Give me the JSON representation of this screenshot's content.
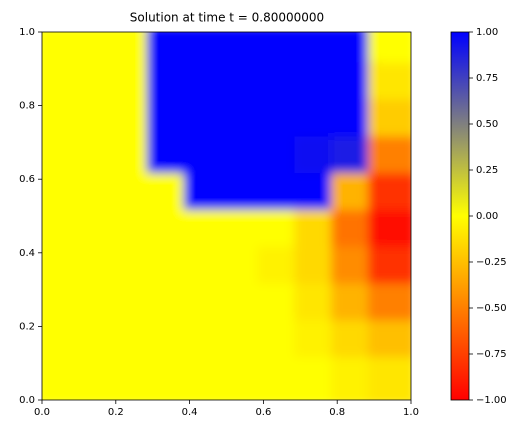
{
  "chart_data": {
    "type": "heatmap",
    "title": "Solution at time t =     0.80000000",
    "x": [
      0.05,
      0.15,
      0.25,
      0.35,
      0.45,
      0.55,
      0.65,
      0.75,
      0.85,
      0.95
    ],
    "y": [
      0.95,
      0.85,
      0.75,
      0.65,
      0.55,
      0.45,
      0.35,
      0.25,
      0.15,
      0.05
    ],
    "z": [
      [
        0,
        0,
        0,
        1,
        1,
        1,
        1,
        1,
        1,
        0
      ],
      [
        0,
        0,
        0,
        1,
        1,
        1,
        1,
        1,
        1,
        -0.1
      ],
      [
        0,
        0,
        0,
        1,
        1,
        1,
        1,
        1,
        1,
        -0.2
      ],
      [
        0,
        0,
        0,
        1,
        1,
        1,
        1,
        0.95,
        0.9,
        -0.5
      ],
      [
        0,
        0,
        0,
        0,
        1,
        1,
        1,
        1,
        -0.3,
        -0.8
      ],
      [
        0,
        0,
        0,
        0,
        0,
        0,
        0,
        -0.15,
        -0.55,
        -0.95
      ],
      [
        0,
        0,
        0,
        0,
        0,
        0,
        -0.05,
        -0.15,
        -0.45,
        -0.8
      ],
      [
        0,
        0,
        0,
        0,
        0,
        0,
        0,
        -0.1,
        -0.3,
        -0.5
      ],
      [
        0,
        0,
        0,
        0,
        0,
        0,
        0,
        -0.05,
        -0.15,
        -0.25
      ],
      [
        0,
        0,
        0,
        0,
        0,
        0,
        0,
        0,
        -0.05,
        -0.1
      ]
    ],
    "xlim": [
      0,
      1
    ],
    "ylim": [
      0,
      1
    ],
    "xticks": [
      {
        "value": 0,
        "label": "0.0"
      },
      0.2,
      0.4,
      0.6,
      0.8,
      {
        "value": 1,
        "label": "1.0"
      }
    ],
    "yticks": [
      {
        "value": 0,
        "label": "0.0"
      },
      0.2,
      0.4,
      0.6,
      0.8,
      {
        "value": 1,
        "label": "1.0"
      }
    ],
    "clim": [
      -1,
      1
    ],
    "colors": [
      "#ff0000",
      "#ffff00",
      "#0000ff"
    ],
    "cticks": [
      {
        "value": -1,
        "label": "−1.00"
      },
      {
        "value": -0.75,
        "label": "−0.75"
      },
      {
        "value": -0.5,
        "label": "−0.50"
      },
      {
        "value": -0.25,
        "label": "−0.25"
      },
      {
        "value": 0,
        "label": "0.00"
      },
      {
        "value": 0.25,
        "label": "0.25"
      },
      {
        "value": 0.5,
        "label": "0.50"
      },
      {
        "value": 0.75,
        "label": "0.75"
      },
      {
        "value": 1,
        "label": "1.00"
      }
    ]
  }
}
